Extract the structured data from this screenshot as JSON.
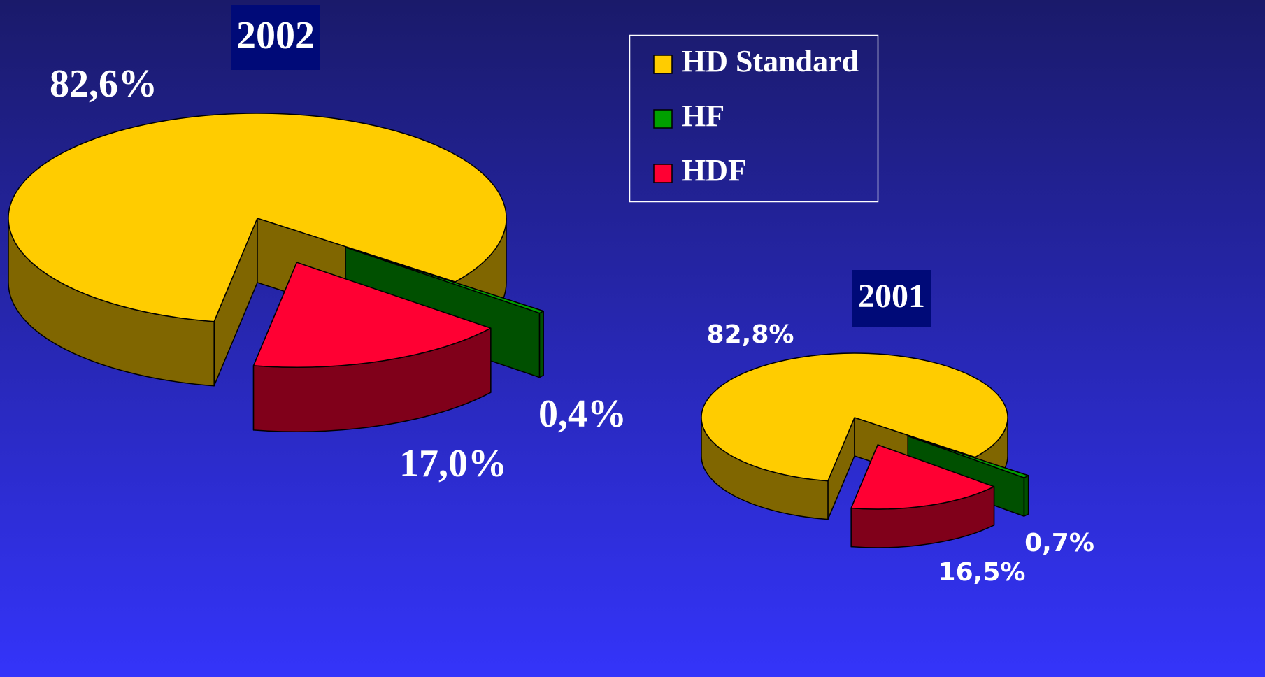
{
  "chart_data": [
    {
      "type": "pie",
      "title": "2002",
      "categories": [
        "HD Standard",
        "HF",
        "HDF"
      ],
      "colors": [
        "#ffcc00",
        "#00a000",
        "#ff0033"
      ],
      "values": [
        82.6,
        0.4,
        17.0
      ],
      "value_labels": [
        "82,6%",
        "0,4%",
        "17,0%"
      ]
    },
    {
      "type": "pie",
      "title": "2001",
      "values": [
        82.8,
        0.7,
        16.5
      ],
      "value_labels": [
        "82,8%",
        "0,7%",
        "16,5%"
      ]
    }
  ]
}
